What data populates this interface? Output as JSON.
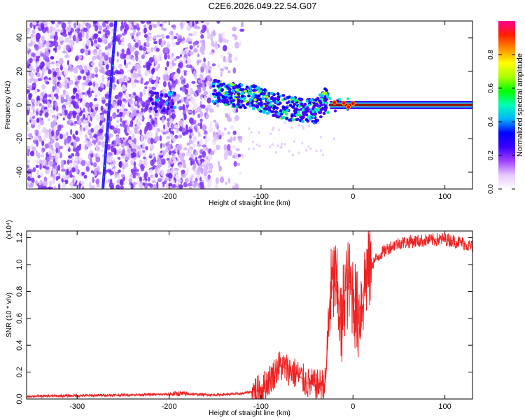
{
  "title": "C2E6.2026.049.22.54.G07",
  "chart_data": [
    {
      "type": "heatmap",
      "xlabel": "Height of straight line (km)",
      "ylabel": "Frequency (Hz)",
      "xlim": [
        -355,
        130
      ],
      "ylim": [
        -50,
        50
      ],
      "x_ticks": [
        -300,
        -200,
        -100,
        0,
        100
      ],
      "x_tick_labels": [
        "-300",
        "-200",
        "-100",
        "0",
        "100"
      ],
      "y_ticks": [
        40,
        20,
        0,
        -20,
        -40
      ],
      "y_tick_labels": [
        "40",
        "20",
        "0",
        "-20",
        "-40"
      ],
      "features": {
        "noise_region_km": [
          -355,
          -120
        ],
        "sparse_noise_region_km": [
          -155,
          -120
        ],
        "diagonal_line_km": {
          "start": [
            -272,
            -50
          ],
          "end": [
            -258,
            50
          ]
        },
        "signal_track": [
          [
            -152,
            8
          ],
          [
            -130,
            6
          ],
          [
            -110,
            5
          ],
          [
            -90,
            1
          ],
          [
            -70,
            -2
          ],
          [
            -55,
            -3
          ],
          [
            -40,
            -4
          ],
          [
            -30,
            3
          ],
          [
            -20,
            0
          ],
          [
            -10,
            1
          ],
          [
            0,
            0
          ],
          [
            130,
            0
          ]
        ],
        "cluster_km": [
          -207,
          2
        ],
        "carrier_start_km": -25
      },
      "colorbar": {
        "label": "Normalized spectral amplitude",
        "range": [
          0,
          1
        ],
        "ticks": [
          0.0,
          0.2,
          0.4,
          0.6,
          0.8
        ],
        "tick_labels": [
          "0.0",
          "0.2",
          "0.4",
          "0.6",
          "0.8"
        ],
        "colors": [
          "#ffffff",
          "#e6c8ff",
          "#8f29ff",
          "#3c00ff",
          "#0000ff",
          "#00d8ff",
          "#00ff5a",
          "#7aff00",
          "#ffff00",
          "#ff8000",
          "#ff0000",
          "#ff0099"
        ]
      }
    },
    {
      "type": "line",
      "xlabel": "Height of straight line (km)",
      "ylabel": "SNR (10 * v/v)",
      "y_scale_label": "(x10⁴)",
      "xlim": [
        -355,
        130
      ],
      "ylim": [
        0,
        1.25
      ],
      "x_ticks": [
        -300,
        -200,
        -100,
        0,
        100
      ],
      "x_tick_labels": [
        "-300",
        "-200",
        "-100",
        "0",
        "100"
      ],
      "y_ticks": [
        0.0,
        0.2,
        0.4,
        0.6,
        0.8,
        1.0,
        1.2
      ],
      "y_tick_labels": [
        "0.0",
        "0.2",
        "0.4",
        "0.6",
        "0.8",
        "1.0",
        "1.2"
      ],
      "series": [
        {
          "name": "SNR",
          "color": "#ee2222",
          "x": [
            -355,
            -300,
            -250,
            -200,
            -190,
            -150,
            -120,
            -100,
            -90,
            -80,
            -70,
            -60,
            -50,
            -40,
            -30,
            -28,
            -25,
            -20,
            -18,
            -15,
            -12,
            -10,
            -5,
            0,
            5,
            10,
            15,
            20,
            30,
            40,
            50,
            60,
            80,
            100,
            120,
            130
          ],
          "y": [
            0.02,
            0.025,
            0.03,
            0.035,
            0.04,
            0.03,
            0.04,
            0.07,
            0.15,
            0.25,
            0.22,
            0.18,
            0.12,
            0.1,
            0.12,
            0.35,
            0.75,
            0.9,
            0.8,
            0.7,
            0.45,
            0.8,
            0.85,
            0.8,
            0.6,
            0.75,
            0.95,
            1.0,
            1.08,
            1.13,
            1.16,
            1.17,
            1.18,
            1.19,
            1.16,
            1.13
          ]
        }
      ]
    }
  ]
}
